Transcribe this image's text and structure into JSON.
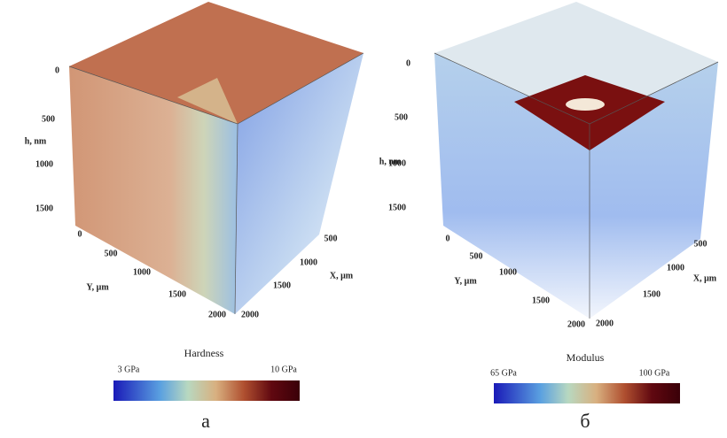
{
  "panels": [
    {
      "label": "а",
      "h_label": "h, nm",
      "y_label": "Y, μm",
      "x_label": "X, μm",
      "h_ticks": [
        0,
        500,
        1000,
        1500
      ],
      "y_ticks": [
        0,
        500,
        1000,
        1500,
        2000
      ],
      "x_ticks": [
        2000,
        1500,
        1000,
        500
      ],
      "colorbar": {
        "title": "Hardness",
        "min_label": "3 GPa",
        "max_label": "10 GPa"
      }
    },
    {
      "label": "б",
      "h_label": "h, nm",
      "y_label": "Y, μm",
      "x_label": "X, μm",
      "h_ticks": [
        0,
        500,
        1000,
        1500
      ],
      "y_ticks": [
        0,
        500,
        1000,
        1500,
        2000
      ],
      "x_ticks": [
        2000,
        1500,
        1000,
        500
      ],
      "colorbar": {
        "title": "Modulus",
        "min_label": "65 GPa",
        "max_label": "100 GPa"
      }
    }
  ]
}
